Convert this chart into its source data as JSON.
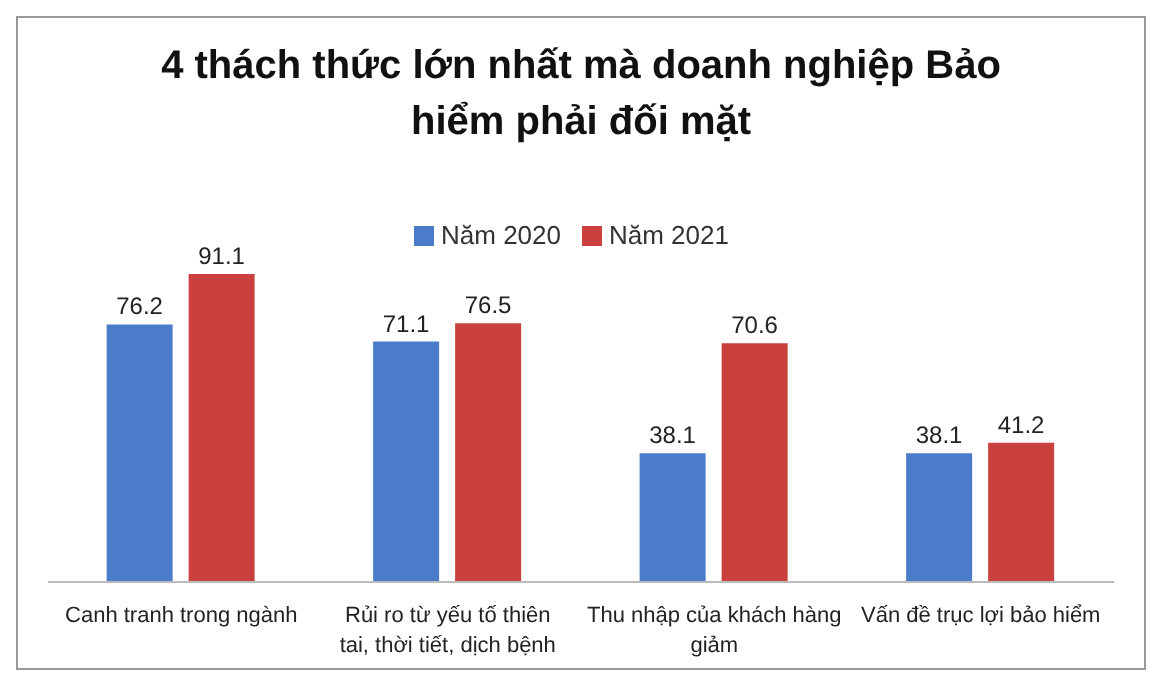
{
  "chart_data": {
    "type": "bar",
    "title": "4 thách thức lớn nhất mà doanh nghiệp Bảo hiểm phải đối mặt",
    "categories": [
      "Canh tranh trong ngành",
      "Rủi ro từ yếu tố thiên tai, thời tiết, dịch bệnh",
      "Thu nhập của khách hàng giảm",
      "Vấn đề trục lợi bảo hiểm"
    ],
    "series": [
      {
        "name": "Năm 2020",
        "color": "#4a7cc9",
        "values": [
          76.2,
          71.1,
          38.1,
          38.1
        ]
      },
      {
        "name": "Năm 2021",
        "color": "#c9403e",
        "values": [
          91.1,
          76.5,
          70.6,
          41.2
        ]
      }
    ],
    "data_labels": true,
    "legend": "top",
    "grid": false
  }
}
